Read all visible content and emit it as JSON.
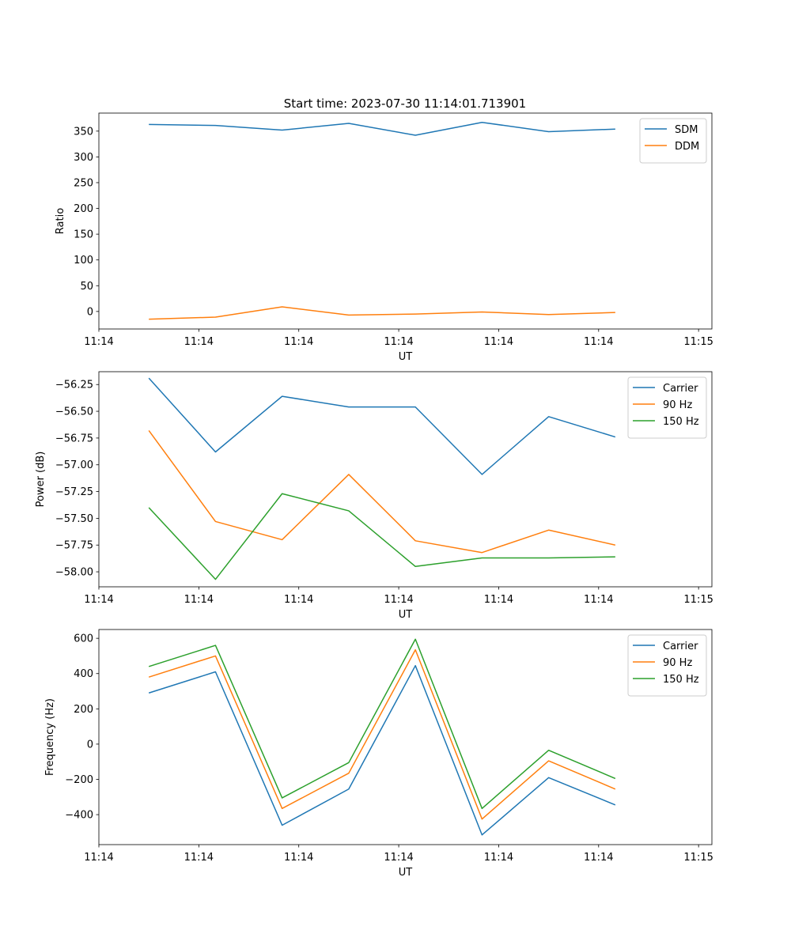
{
  "figure_title": "Start time: 2023-07-30 11:14:01.713901",
  "colors": {
    "blue": "#1f77b4",
    "orange": "#ff7f0e",
    "green": "#2ca02c",
    "axis": "#000000"
  },
  "chart_data": [
    {
      "type": "line",
      "ylabel": "Ratio",
      "xlabel": "UT",
      "ylim": [
        -34,
        385
      ],
      "yticks": [
        0,
        50,
        100,
        150,
        200,
        250,
        300,
        350
      ],
      "ytick_labels": [
        "0",
        "50",
        "100",
        "150",
        "200",
        "250",
        "300",
        "350"
      ],
      "legend": "top-right",
      "series": [
        {
          "name": "SDM",
          "color": "#1f77b4",
          "values": [
            363,
            361,
            352,
            365,
            342,
            367,
            349,
            354
          ]
        },
        {
          "name": "DDM",
          "color": "#ff7f0e",
          "values": [
            -15,
            -11,
            9,
            -7,
            -5,
            -1,
            -6,
            -2
          ]
        }
      ]
    },
    {
      "type": "line",
      "ylabel": "Power (dB)",
      "xlabel": "UT",
      "ylim": [
        -58.14,
        -56.13
      ],
      "yticks": [
        -58.0,
        -57.75,
        -57.5,
        -57.25,
        -57.0,
        -56.75,
        -56.5,
        -56.25
      ],
      "ytick_labels": [
        "−58.00",
        "−57.75",
        "−57.50",
        "−57.25",
        "−57.00",
        "−56.75",
        "−56.50",
        "−56.25"
      ],
      "legend": "top-right",
      "series": [
        {
          "name": "Carrier",
          "color": "#1f77b4",
          "values": [
            -56.19,
            -56.88,
            -56.36,
            -56.46,
            -56.46,
            -57.09,
            -56.55,
            -56.74
          ]
        },
        {
          "name": "90 Hz",
          "color": "#ff7f0e",
          "values": [
            -56.68,
            -57.53,
            -57.7,
            -57.09,
            -57.71,
            -57.82,
            -57.61,
            -57.75
          ]
        },
        {
          "name": "150 Hz",
          "color": "#2ca02c",
          "values": [
            -57.4,
            -58.07,
            -57.27,
            -57.43,
            -57.95,
            -57.87,
            -57.87,
            -57.86
          ]
        }
      ]
    },
    {
      "type": "line",
      "ylabel": "Frequency (Hz)",
      "xlabel": "UT",
      "ylim": [
        -570,
        650
      ],
      "yticks": [
        -400,
        -200,
        0,
        200,
        400,
        600
      ],
      "ytick_labels": [
        "−400",
        "−200",
        "0",
        "200",
        "400",
        "600"
      ],
      "legend": "top-right",
      "series": [
        {
          "name": "Carrier",
          "color": "#1f77b4",
          "values": [
            290,
            410,
            -460,
            -255,
            445,
            -515,
            -190,
            -345
          ]
        },
        {
          "name": "90 Hz",
          "color": "#ff7f0e",
          "values": [
            380,
            500,
            -365,
            -165,
            535,
            -425,
            -95,
            -255
          ]
        },
        {
          "name": "150 Hz",
          "color": "#2ca02c",
          "values": [
            440,
            560,
            -305,
            -105,
            595,
            -365,
            -35,
            -195
          ]
        }
      ]
    }
  ],
  "x_axis": {
    "xlim": [
      -0.75,
      8.45
    ],
    "point_x": [
      0,
      1,
      2,
      3,
      4,
      5,
      6,
      7
    ],
    "tick_x": [
      -0.75,
      0.75,
      2.25,
      3.75,
      5.25,
      6.75,
      8.25
    ],
    "tick_labels": [
      "11:14",
      "11:14",
      "11:14",
      "11:14",
      "11:14",
      "11:14",
      "11:15"
    ]
  }
}
